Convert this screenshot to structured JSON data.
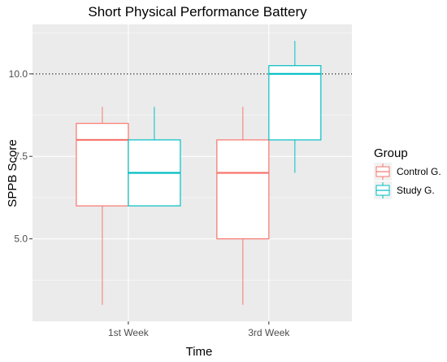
{
  "chart_data": {
    "type": "box",
    "title": "Short Physical Performance Battery",
    "xlabel": "Time",
    "ylabel": "SPPB Score",
    "categories": [
      "1st Week",
      "3rd Week"
    ],
    "ylim": [
      2.5,
      11.5
    ],
    "yticks": [
      5.0,
      7.5,
      10.0
    ],
    "ytick_labels": [
      "5.0",
      "7.5",
      "10.0"
    ],
    "reference_line": {
      "y": 10.0,
      "style": "dotted",
      "color": "#000000"
    },
    "grid": true,
    "legend": {
      "title": "Group",
      "position": "right"
    },
    "series": [
      {
        "name": "Control G.",
        "color": "#F8766D",
        "boxes": [
          {
            "category": "1st Week",
            "min": 3.0,
            "q1": 6.0,
            "median": 8.0,
            "q3": 8.5,
            "max": 9.0
          },
          {
            "category": "3rd Week",
            "min": 3.0,
            "q1": 5.0,
            "median": 7.0,
            "q3": 8.0,
            "max": 9.0
          }
        ]
      },
      {
        "name": "Study G.",
        "color": "#00BFC4",
        "boxes": [
          {
            "category": "1st Week",
            "min": 6.0,
            "q1": 6.0,
            "median": 7.0,
            "q3": 8.0,
            "max": 9.0
          },
          {
            "category": "3rd Week",
            "min": 7.0,
            "q1": 8.0,
            "median": 10.0,
            "q3": 10.25,
            "max": 11.0
          }
        ]
      }
    ],
    "panel_background": "#EBEBEB",
    "grid_color": "#FFFFFF"
  }
}
